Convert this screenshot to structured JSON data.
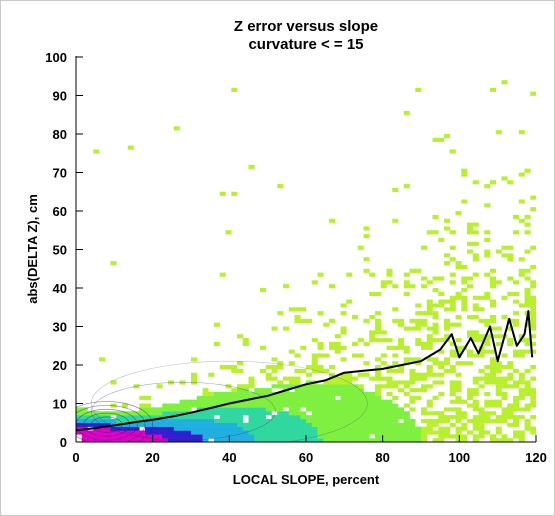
{
  "chart_data": {
    "type": "heatmap",
    "title": "Z error versus slope",
    "subtitle": "curvature < = 15",
    "xlabel": "LOCAL SLOPE, percent",
    "ylabel": "abs(DELTA Z), cm",
    "xlim": [
      0,
      120
    ],
    "ylim": [
      0,
      100
    ],
    "x_ticks": [
      "0",
      "20",
      "40",
      "60",
      "80",
      "100",
      "120"
    ],
    "y_ticks": [
      "0",
      "10",
      "20",
      "30",
      "40",
      "50",
      "60",
      "70",
      "80",
      "90",
      "100"
    ],
    "grid": false,
    "colors": {
      "density_high": "#e000c8",
      "density_mid_high": "#3020d0",
      "density_mid": "#20b0e0",
      "density_mid_low": "#30d8a0",
      "density_low": "#80f040",
      "density_sparse": "#b8f030",
      "mean_line": "#000000"
    },
    "series": [
      {
        "name": "",
        "type": "line",
        "x": [
          0,
          5,
          10,
          15,
          20,
          25,
          30,
          35,
          40,
          45,
          50,
          55,
          60,
          65,
          70,
          75,
          80,
          85,
          90,
          95,
          98,
          100,
          103,
          105,
          108,
          110,
          113,
          115,
          117,
          118,
          119
        ],
        "y": [
          3,
          3.6,
          4.3,
          5.1,
          5.8,
          6.6,
          7.6,
          8.8,
          10,
          11,
          12,
          13.5,
          15,
          16,
          18,
          18.5,
          19,
          20,
          21,
          24,
          28,
          22,
          27,
          23,
          30,
          21,
          32,
          25,
          28,
          34,
          22
        ]
      }
    ]
  }
}
